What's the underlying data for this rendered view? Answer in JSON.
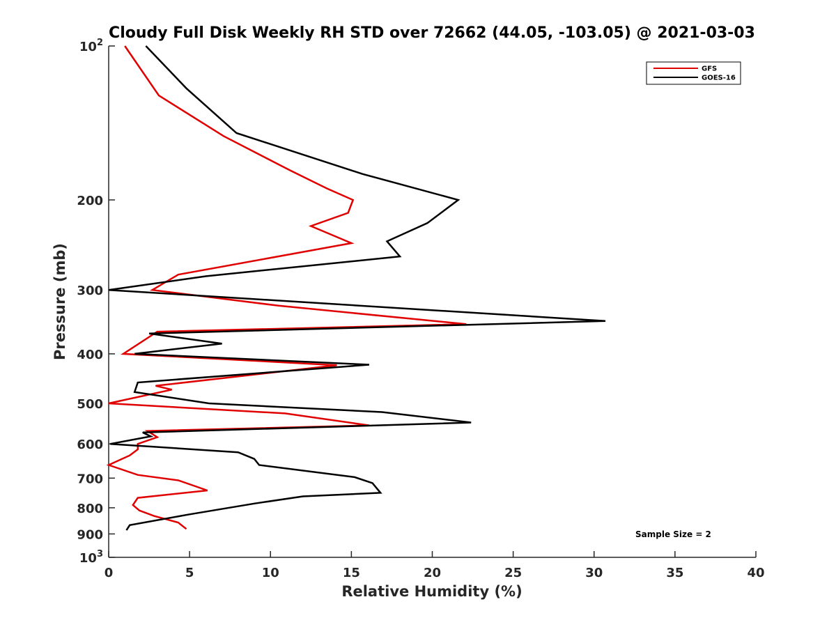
{
  "chart_data": {
    "type": "line",
    "title": "Cloudy Full Disk Weekly RH STD over 72662 (44.05, -103.05) @ 2021-03-03",
    "xlabel": "Relative Humidity (%)",
    "ylabel": "Pressure (mb)",
    "xlim": [
      0,
      40
    ],
    "ylim": [
      100,
      1000
    ],
    "yscale": "log",
    "yreversed": true,
    "grid": false,
    "legend_position": "top-right",
    "x_ticks": [
      "0",
      "5",
      "10",
      "15",
      "20",
      "25",
      "30",
      "35",
      "40"
    ],
    "y_ticks": [
      {
        "value": 100,
        "base": "10",
        "exp": "2"
      },
      {
        "value": 200,
        "label": "200"
      },
      {
        "value": 300,
        "label": "300"
      },
      {
        "value": 400,
        "label": "400"
      },
      {
        "value": 500,
        "label": "500"
      },
      {
        "value": 600,
        "label": "600"
      },
      {
        "value": 700,
        "label": "700"
      },
      {
        "value": 800,
        "label": "800"
      },
      {
        "value": 900,
        "label": "900"
      },
      {
        "value": 1000,
        "base": "10",
        "exp": "3"
      }
    ],
    "annotation": "Sample Size = 2",
    "series": [
      {
        "name": "GFS",
        "color": "#e00000",
        "points": [
          [
            1.0,
            100
          ],
          [
            3.1,
            125
          ],
          [
            7.1,
            150
          ],
          [
            11.2,
            175
          ],
          [
            13.5,
            190
          ],
          [
            15.1,
            200
          ],
          [
            14.8,
            212
          ],
          [
            12.5,
            225
          ],
          [
            15.0,
            243
          ],
          [
            4.3,
            280
          ],
          [
            2.7,
            300
          ],
          [
            10.5,
            322
          ],
          [
            22.1,
            350
          ],
          [
            3.0,
            362
          ],
          [
            0.9,
            400
          ],
          [
            14.1,
            421
          ],
          [
            2.9,
            462
          ],
          [
            3.9,
            470
          ],
          [
            0.0,
            500
          ],
          [
            10.9,
            523
          ],
          [
            16.1,
            552
          ],
          [
            2.4,
            566
          ],
          [
            3.0,
            582
          ],
          [
            1.8,
            600
          ],
          [
            1.8,
            615
          ],
          [
            1.3,
            632
          ],
          [
            0.0,
            660
          ],
          [
            1.8,
            690
          ],
          [
            4.3,
            707
          ],
          [
            6.1,
            740
          ],
          [
            1.8,
            765
          ],
          [
            1.5,
            790
          ],
          [
            1.9,
            810
          ],
          [
            2.8,
            830
          ],
          [
            4.3,
            855
          ],
          [
            4.8,
            880
          ]
        ]
      },
      {
        "name": "GOES-16",
        "color": "#000000",
        "points": [
          [
            2.3,
            100
          ],
          [
            4.8,
            121
          ],
          [
            7.9,
            148
          ],
          [
            15.7,
            178
          ],
          [
            21.6,
            200
          ],
          [
            19.7,
            222
          ],
          [
            17.2,
            241
          ],
          [
            18.0,
            258
          ],
          [
            6.0,
            282
          ],
          [
            0.0,
            300
          ],
          [
            30.7,
            345
          ],
          [
            2.5,
            365
          ],
          [
            7.0,
            382
          ],
          [
            1.6,
            400
          ],
          [
            16.1,
            420
          ],
          [
            1.8,
            455
          ],
          [
            1.6,
            475
          ],
          [
            6.2,
            500
          ],
          [
            16.9,
            520
          ],
          [
            22.4,
            545
          ],
          [
            2.1,
            570
          ],
          [
            2.6,
            580
          ],
          [
            0.1,
            600
          ],
          [
            8.0,
            623
          ],
          [
            9.0,
            642
          ],
          [
            9.3,
            660
          ],
          [
            15.2,
            697
          ],
          [
            16.3,
            716
          ],
          [
            16.8,
            748
          ],
          [
            12.0,
            760
          ],
          [
            9.0,
            785
          ],
          [
            4.9,
            825
          ],
          [
            1.3,
            865
          ],
          [
            1.1,
            885
          ]
        ]
      }
    ]
  }
}
